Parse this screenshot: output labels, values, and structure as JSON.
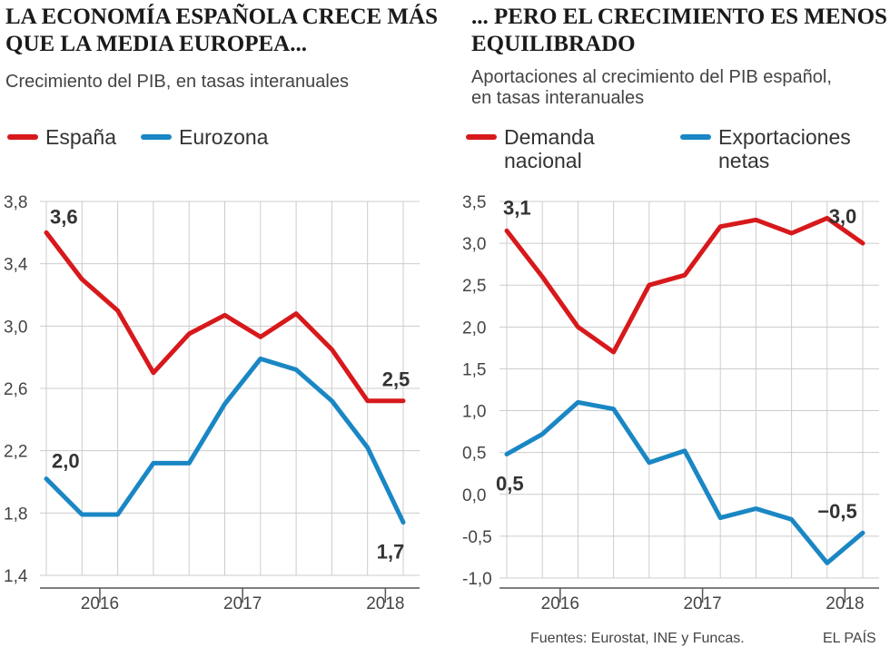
{
  "colors": {
    "spain": "#d7191c",
    "eurozone": "#1a87c4",
    "grid": "#cccccc",
    "axis": "#555555"
  },
  "left": {
    "title": "LA ECONOMÍA ESPAÑOLA CRECE MÁS\nQUE LA MEDIA EUROPEA...",
    "subtitle": "Crecimiento del PIB, en tasas interanuales",
    "legend": [
      {
        "label": "España",
        "color": "#d7191c"
      },
      {
        "label": "Eurozona",
        "color": "#1a87c4"
      }
    ]
  },
  "right": {
    "title": "... PERO EL CRECIMIENTO ES MENOS\nEQUILIBRADO",
    "subtitle": "Aportaciones al crecimiento del PIB español,\nen tasas interanuales",
    "legend": [
      {
        "label": "Demanda\nnacional",
        "color": "#d7191c"
      },
      {
        "label": "Exportaciones\nnetas",
        "color": "#1a87c4"
      }
    ]
  },
  "footer": {
    "sources": "Fuentes: Eurostat, INE y Funcas.",
    "brand": "EL PAÍS"
  },
  "chart_data": [
    {
      "type": "line",
      "title": "LA ECONOMÍA ESPAÑOLA CRECE MÁS QUE LA MEDIA EUROPEA...",
      "ylabel": "Crecimiento del PIB, en tasas interanuales",
      "x": [
        0,
        1,
        2,
        3,
        4,
        5,
        6,
        7,
        8,
        9,
        10
      ],
      "xticks": [
        {
          "x": 1.5,
          "label": "2016"
        },
        {
          "x": 5.5,
          "label": "2017"
        },
        {
          "x": 9.5,
          "label": "2018"
        }
      ],
      "yticks": [
        "3,8",
        "3,4",
        "3,0",
        "2,6",
        "2,2",
        "1,8",
        "1,4"
      ],
      "ytick_values": [
        3.8,
        3.4,
        3.0,
        2.6,
        2.2,
        1.8,
        1.4
      ],
      "ylim": [
        1.4,
        3.8
      ],
      "series": [
        {
          "name": "España",
          "color": "#d7191c",
          "values": [
            3.6,
            3.3,
            3.1,
            2.7,
            2.95,
            3.07,
            2.93,
            3.08,
            2.85,
            2.52,
            2.52
          ],
          "labels": [
            {
              "index": 0,
              "text": "3,6"
            },
            {
              "index": 10,
              "text": "2,5"
            }
          ]
        },
        {
          "name": "Eurozona",
          "color": "#1a87c4",
          "values": [
            2.02,
            1.79,
            1.79,
            2.12,
            2.12,
            2.5,
            2.79,
            2.72,
            2.52,
            2.22,
            1.74
          ],
          "labels": [
            {
              "index": 0,
              "text": "2,0"
            },
            {
              "index": 10,
              "text": "1,7"
            }
          ]
        }
      ]
    },
    {
      "type": "line",
      "title": "... PERO EL CRECIMIENTO ES MENOS EQUILIBRADO",
      "ylabel": "Aportaciones al crecimiento del PIB español, en tasas interanuales",
      "x": [
        0,
        1,
        2,
        3,
        4,
        5,
        6,
        7,
        8,
        9,
        10
      ],
      "xticks": [
        {
          "x": 1.5,
          "label": "2016"
        },
        {
          "x": 5.5,
          "label": "2017"
        },
        {
          "x": 9.5,
          "label": "2018"
        }
      ],
      "yticks": [
        "3,5",
        "3,0",
        "2,5",
        "2,0",
        "1,5",
        "1,0",
        "0,5",
        "0,0",
        "-0,5",
        "-1,0"
      ],
      "ytick_values": [
        3.5,
        3.0,
        2.5,
        2.0,
        1.5,
        1.0,
        0.5,
        0.0,
        -0.5,
        -1.0
      ],
      "ylim": [
        -1.0,
        3.5
      ],
      "series": [
        {
          "name": "Demanda nacional",
          "color": "#d7191c",
          "values": [
            3.15,
            2.6,
            2.0,
            1.7,
            2.5,
            2.62,
            3.2,
            3.28,
            3.12,
            3.3,
            3.0
          ],
          "labels": [
            {
              "index": 0,
              "text": "3,1"
            },
            {
              "index": 10,
              "text": "3,0"
            }
          ]
        },
        {
          "name": "Exportaciones netas",
          "color": "#1a87c4",
          "values": [
            0.48,
            0.72,
            1.1,
            1.02,
            0.38,
            0.52,
            -0.28,
            -0.17,
            -0.3,
            -0.82,
            -0.46
          ],
          "labels": [
            {
              "index": 0,
              "text": "0,5"
            },
            {
              "index": 10,
              "text": "−0,5"
            }
          ]
        }
      ]
    }
  ]
}
